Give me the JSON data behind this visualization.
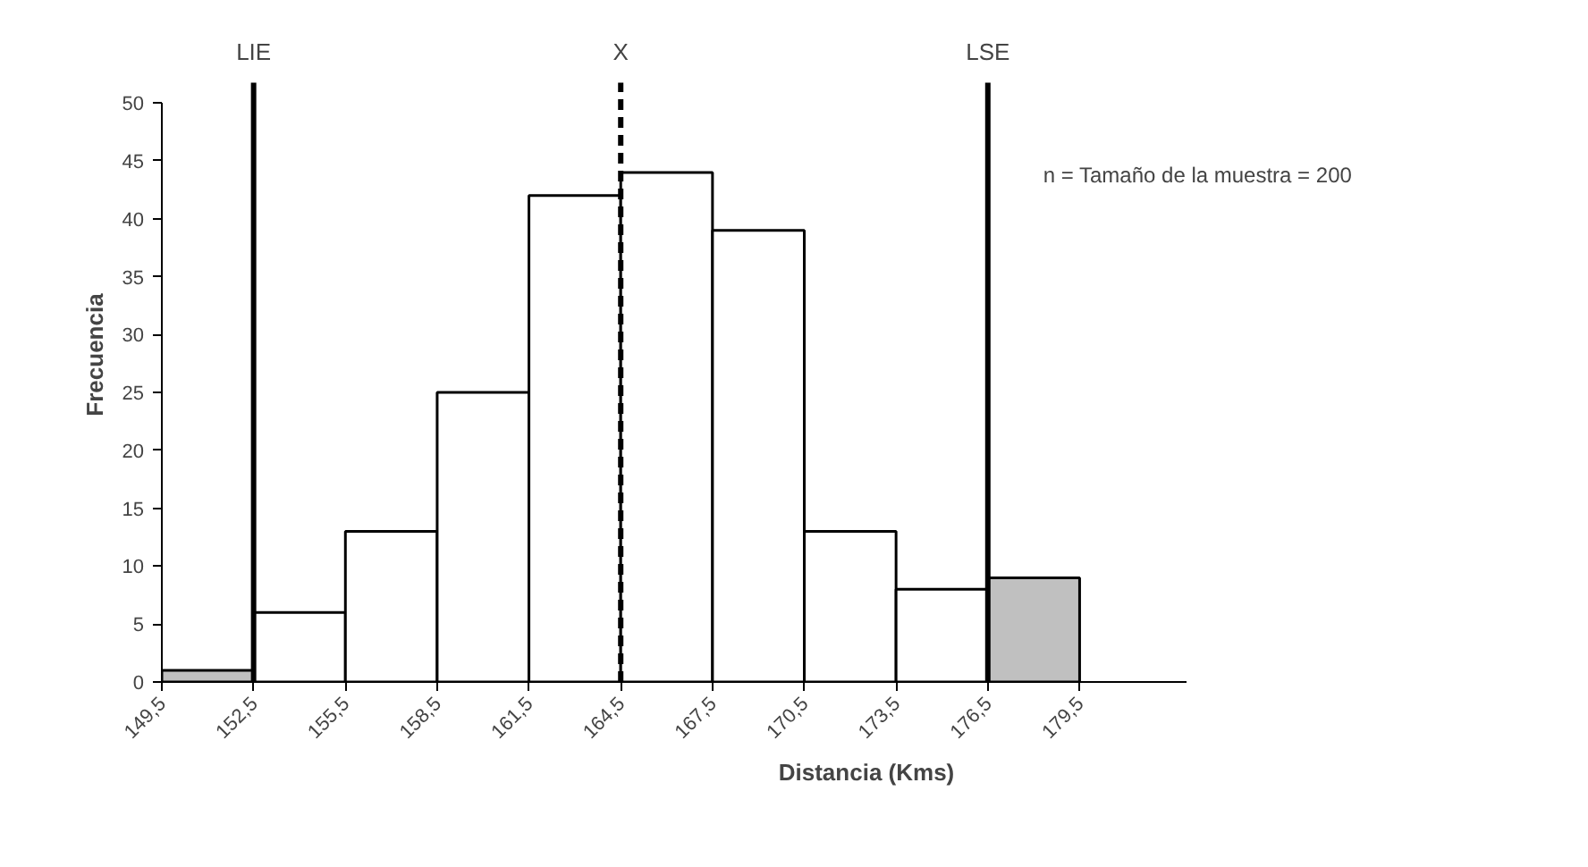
{
  "chart_data": {
    "type": "histogram",
    "xlabel": "Distancia (Kms)",
    "ylabel": "Frecuencia",
    "bins": [
      149.5,
      152.5,
      155.5,
      158.5,
      161.5,
      164.5,
      167.5,
      170.5,
      173.5,
      176.5,
      179.5
    ],
    "values": [
      1,
      6,
      13,
      25,
      42,
      44,
      39,
      13,
      8,
      9
    ],
    "colors": [
      "#c0c0c0",
      "#ffffff",
      "#ffffff",
      "#ffffff",
      "#ffffff",
      "#ffffff",
      "#ffffff",
      "#ffffff",
      "#ffffff",
      "#c0c0c0"
    ],
    "xlim": [
      149.5,
      183
    ],
    "ylim": [
      0,
      50
    ],
    "xticks": [
      {
        "value": 149.5,
        "label": "149,5"
      },
      {
        "value": 152.5,
        "label": "152,5"
      },
      {
        "value": 155.5,
        "label": "155,5"
      },
      {
        "value": 158.5,
        "label": "158,5"
      },
      {
        "value": 161.5,
        "label": "161,5"
      },
      {
        "value": 164.5,
        "label": "164,5"
      },
      {
        "value": 167.5,
        "label": "167,5"
      },
      {
        "value": 170.5,
        "label": "170,5"
      },
      {
        "value": 173.5,
        "label": "173,5"
      },
      {
        "value": 176.5,
        "label": "176,5"
      },
      {
        "value": 179.5,
        "label": "179,5"
      }
    ],
    "yticks": [
      0,
      5,
      10,
      15,
      20,
      25,
      30,
      35,
      40,
      45,
      50
    ],
    "ref_lines": [
      {
        "axis": "x",
        "value": 152.5,
        "label": "LIE",
        "color": "#000000",
        "line_style": "solid"
      },
      {
        "axis": "x",
        "value": 164.5,
        "label": "X",
        "color": "#000000",
        "line_style": "dashed"
      },
      {
        "axis": "x",
        "value": 176.5,
        "label": "LSE",
        "color": "#000000",
        "line_style": "solid"
      }
    ],
    "annotations": [
      "n = Tamaño de la muestra = 200"
    ],
    "grid": false
  }
}
